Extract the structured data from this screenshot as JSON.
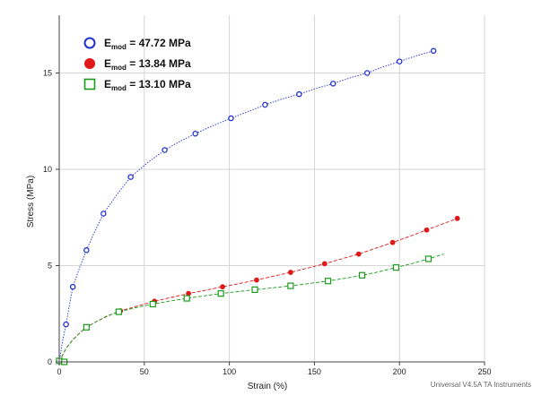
{
  "chart_data": {
    "type": "scatter",
    "xlabel": "Strain (%)",
    "ylabel": "Stress (MPa)",
    "xlim": [
      0,
      250
    ],
    "ylim": [
      0,
      18
    ],
    "xticks": [
      0,
      50,
      100,
      150,
      200,
      250
    ],
    "yticks": [
      0,
      5,
      10,
      15
    ],
    "grid": true,
    "legend_position": "top-left",
    "series": [
      {
        "name": "E_mod = 47.72 MPa",
        "legend_main": "E",
        "legend_sub": "mod",
        "legend_value": " = 47.72 MPa",
        "color": "#1f2fd0",
        "marker": "circle-open",
        "line_style": "dotted",
        "points": [
          [
            0,
            0.05
          ],
          [
            4,
            1.95
          ],
          [
            8,
            3.9
          ],
          [
            16,
            5.8
          ],
          [
            26,
            7.7
          ],
          [
            42,
            9.6
          ],
          [
            62,
            11.0
          ],
          [
            80,
            11.85
          ],
          [
            101,
            12.65
          ],
          [
            121,
            13.35
          ],
          [
            141,
            13.9
          ],
          [
            161,
            14.45
          ],
          [
            181,
            15.0
          ],
          [
            200,
            15.6
          ],
          [
            220,
            16.15
          ]
        ],
        "fit": [
          [
            0,
            0
          ],
          [
            2,
            1.1
          ],
          [
            4,
            1.95
          ],
          [
            6,
            2.95
          ],
          [
            8,
            3.9
          ],
          [
            12,
            4.9
          ],
          [
            16,
            5.8
          ],
          [
            20,
            6.6
          ],
          [
            26,
            7.7
          ],
          [
            34,
            8.7
          ],
          [
            42,
            9.6
          ],
          [
            52,
            10.35
          ],
          [
            62,
            11.0
          ],
          [
            71,
            11.45
          ],
          [
            80,
            11.85
          ],
          [
            90,
            12.25
          ],
          [
            101,
            12.65
          ],
          [
            111,
            13.0
          ],
          [
            121,
            13.35
          ],
          [
            131,
            13.65
          ],
          [
            141,
            13.9
          ],
          [
            151,
            14.2
          ],
          [
            161,
            14.45
          ],
          [
            171,
            14.75
          ],
          [
            181,
            15.0
          ],
          [
            190,
            15.3
          ],
          [
            200,
            15.6
          ],
          [
            210,
            15.9
          ],
          [
            220,
            16.15
          ]
        ]
      },
      {
        "name": "E_mod = 13.84 MPa",
        "legend_main": "E",
        "legend_sub": "mod",
        "legend_value": " = 13.84 MPa",
        "color": "#e01818",
        "marker": "circle-filled",
        "line_style": "dashed",
        "points": [
          [
            0,
            0.05
          ],
          [
            16,
            1.8
          ],
          [
            36,
            2.65
          ],
          [
            56,
            3.15
          ],
          [
            76,
            3.55
          ],
          [
            96,
            3.9
          ],
          [
            116,
            4.25
          ],
          [
            136,
            4.65
          ],
          [
            156,
            5.1
          ],
          [
            176,
            5.6
          ],
          [
            196,
            6.2
          ],
          [
            216,
            6.85
          ],
          [
            234,
            7.45
          ]
        ],
        "fit": [
          [
            0,
            0
          ],
          [
            4,
            0.7
          ],
          [
            8,
            1.15
          ],
          [
            12,
            1.5
          ],
          [
            16,
            1.8
          ],
          [
            22,
            2.1
          ],
          [
            29,
            2.4
          ],
          [
            36,
            2.65
          ],
          [
            46,
            2.9
          ],
          [
            56,
            3.15
          ],
          [
            66,
            3.35
          ],
          [
            76,
            3.55
          ],
          [
            86,
            3.72
          ],
          [
            96,
            3.9
          ],
          [
            106,
            4.07
          ],
          [
            116,
            4.25
          ],
          [
            126,
            4.45
          ],
          [
            136,
            4.65
          ],
          [
            146,
            4.87
          ],
          [
            156,
            5.1
          ],
          [
            166,
            5.35
          ],
          [
            176,
            5.6
          ],
          [
            186,
            5.9
          ],
          [
            196,
            6.2
          ],
          [
            206,
            6.52
          ],
          [
            216,
            6.85
          ],
          [
            225,
            7.15
          ],
          [
            234,
            7.45
          ]
        ]
      },
      {
        "name": "E_mod = 13.10 MPa",
        "legend_main": "E",
        "legend_sub": "mod",
        "legend_value": " = 13.10 MPa",
        "color": "#1a9a1a",
        "marker": "square-open",
        "line_style": "dashed",
        "points": [
          [
            0,
            0.05
          ],
          [
            3,
            0.0
          ],
          [
            16,
            1.8
          ],
          [
            35,
            2.6
          ],
          [
            55,
            3.0
          ],
          [
            75,
            3.3
          ],
          [
            95,
            3.55
          ],
          [
            115,
            3.75
          ],
          [
            136,
            3.95
          ],
          [
            158,
            4.2
          ],
          [
            178,
            4.5
          ],
          [
            198,
            4.9
          ],
          [
            217,
            5.35
          ]
        ],
        "fit": [
          [
            0,
            0
          ],
          [
            4,
            0.7
          ],
          [
            8,
            1.15
          ],
          [
            12,
            1.5
          ],
          [
            16,
            1.8
          ],
          [
            22,
            2.1
          ],
          [
            28,
            2.38
          ],
          [
            35,
            2.6
          ],
          [
            45,
            2.82
          ],
          [
            55,
            3.0
          ],
          [
            65,
            3.16
          ],
          [
            75,
            3.3
          ],
          [
            85,
            3.43
          ],
          [
            95,
            3.55
          ],
          [
            105,
            3.65
          ],
          [
            115,
            3.75
          ],
          [
            126,
            3.85
          ],
          [
            136,
            3.95
          ],
          [
            147,
            4.07
          ],
          [
            158,
            4.2
          ],
          [
            168,
            4.34
          ],
          [
            178,
            4.5
          ],
          [
            188,
            4.68
          ],
          [
            198,
            4.9
          ],
          [
            208,
            5.12
          ],
          [
            217,
            5.35
          ],
          [
            226,
            5.6
          ]
        ]
      }
    ],
    "watermark": "Universal V4.5A TA Instruments"
  }
}
